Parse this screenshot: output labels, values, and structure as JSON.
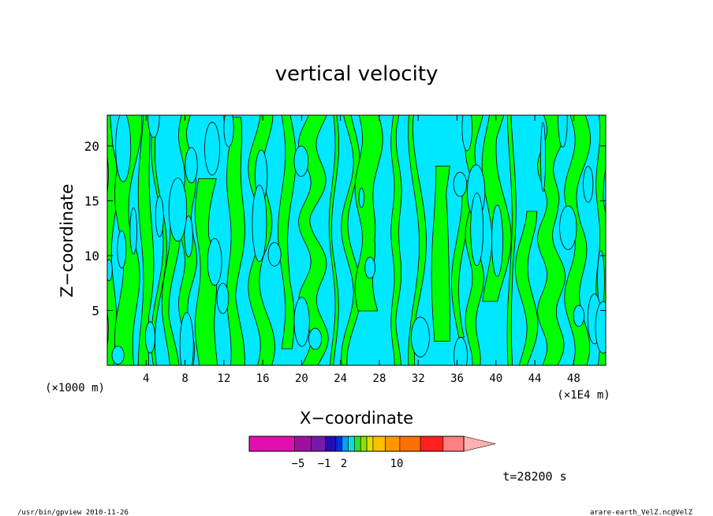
{
  "chart_data": {
    "type": "heatmap",
    "title": "vertical velocity",
    "xlabel": "X−coordinate",
    "ylabel": "Z−coordinate",
    "x_unit_left": "(×1000 m)",
    "x_unit_right": "(×1E4 m)",
    "x_ticks": [
      "4",
      "8",
      "12",
      "16",
      "20",
      "24",
      "28",
      "32",
      "36",
      "40",
      "44",
      "48"
    ],
    "x_tick_values": [
      4,
      8,
      12,
      16,
      20,
      24,
      28,
      32,
      36,
      40,
      44,
      48
    ],
    "y_ticks": [
      "5",
      "10",
      "15",
      "20"
    ],
    "y_tick_values": [
      5,
      10,
      15,
      20
    ],
    "xlim": [
      0,
      51.3
    ],
    "ylim": [
      0,
      22.8
    ],
    "grid": false,
    "colorbar": {
      "colors": [
        "#e010b0",
        "#a010a0",
        "#7818a8",
        "#2010b0",
        "#0030e0",
        "#00a0ff",
        "#00e0e0",
        "#30e030",
        "#90e000",
        "#e0e000",
        "#ffc000",
        "#ff9800",
        "#ff7000",
        "#ff2020",
        "#ff8080",
        "#ffb0b0"
      ],
      "tick_labels": [
        "−5",
        "−1",
        "2",
        "10"
      ]
    },
    "dominant_fills": {
      "positive": "#00ff00",
      "negative": "#00e8ff"
    }
  },
  "time_label": "t=28200 s",
  "footer_left": "/usr/bin/gpview   2010-11-26",
  "footer_right": "arare-earth_VelZ.nc@VelZ"
}
